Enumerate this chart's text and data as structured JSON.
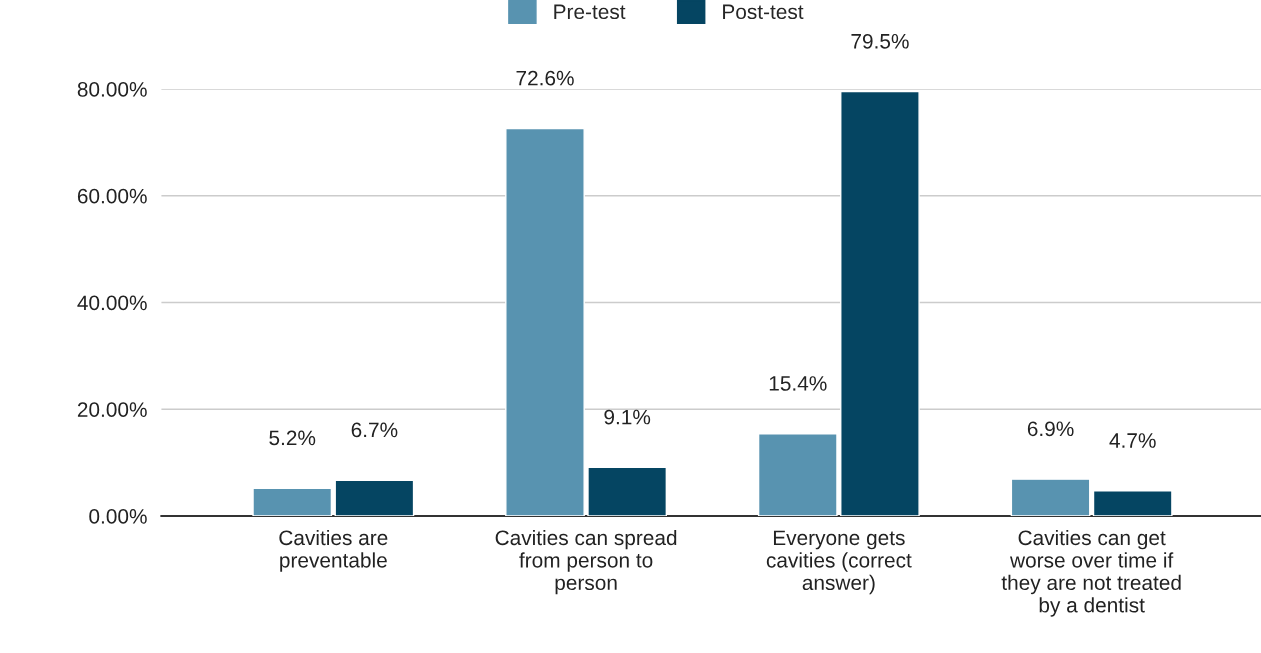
{
  "chart_data": {
    "type": "bar",
    "categories": [
      "Cavities are preventable",
      "Cavities can spread from person to person",
      "Everyone gets cavities (correct answer)",
      "Cavities can get worse over time if they are not treated by a dentist"
    ],
    "series": [
      {
        "name": "Pre-test",
        "color": "#5893b0",
        "values": [
          5.2,
          72.6,
          15.4,
          6.9
        ],
        "value_labels": [
          "5.2%",
          "72.6%",
          "15.4%",
          "6.9%"
        ]
      },
      {
        "name": "Post-test",
        "color": "#054562",
        "values": [
          6.7,
          9.1,
          79.5,
          4.7
        ],
        "value_labels": [
          "6.7%",
          "9.1%",
          "79.5%",
          "4.7%"
        ]
      }
    ],
    "ylim": [
      0,
      80
    ],
    "yticks": [
      {
        "value": 0,
        "label": "0.00%"
      },
      {
        "value": 20,
        "label": "20.00%"
      },
      {
        "value": 40,
        "label": "40.00%"
      },
      {
        "value": 60,
        "label": "60.00%"
      },
      {
        "value": 80,
        "label": "80.00%"
      }
    ],
    "grid": "y",
    "legend": "top"
  }
}
